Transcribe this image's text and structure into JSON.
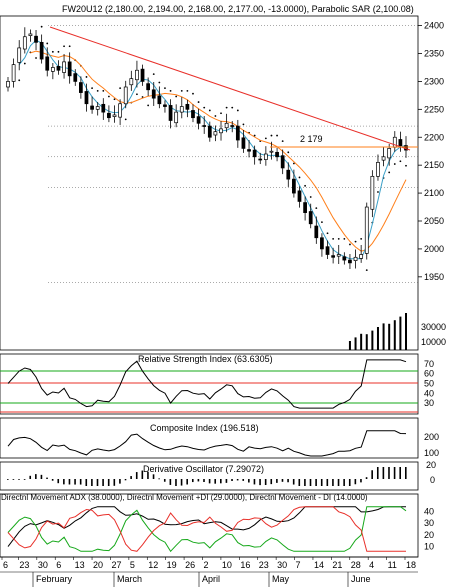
{
  "chart_data": {
    "type": "candlestick",
    "months": [
      "February",
      "March",
      "April",
      "May",
      "June"
    ],
    "date_ticks": [
      "6",
      "23",
      "30",
      "6",
      "13",
      "20",
      "27",
      "5",
      "12",
      "19",
      "26",
      "2",
      "10",
      "16",
      "23",
      "30",
      "7",
      "14",
      "21",
      "28",
      "4",
      "11",
      "18"
    ],
    "price_panel": {
      "title": "FW20U12 (2,180.00, 2,194.00, 2,168.00, 2,177.00, -13.0000), Parabolic SAR (2,100.08)",
      "y_ticks": [
        "2400",
        "2350",
        "2300",
        "2250",
        "2200",
        "2150",
        "2100",
        "2050",
        "2000",
        "1950"
      ],
      "ylim": [
        1930,
        2410
      ],
      "annotation": "2 179",
      "volume_ticks": [
        "30000",
        "10000"
      ],
      "close": [
        2300,
        2330,
        2360,
        2380,
        2385,
        2370,
        2340,
        2320,
        2325,
        2320,
        2335,
        2310,
        2300,
        2280,
        2260,
        2250,
        2255,
        2245,
        2235,
        2240,
        2260,
        2290,
        2305,
        2320,
        2300,
        2285,
        2270,
        2260,
        2255,
        2230,
        2245,
        2255,
        2250,
        2235,
        2225,
        2220,
        2200,
        2210,
        2215,
        2225,
        2220,
        2195,
        2180,
        2175,
        2165,
        2160,
        2170,
        2175,
        2165,
        2145,
        2125,
        2100,
        2085,
        2065,
        2045,
        2020,
        2000,
        1990,
        1985,
        1990,
        1980,
        1975,
        1985,
        1990,
        2075,
        2130,
        2155,
        2165,
        2180,
        2200,
        2185,
        2177
      ]
    },
    "rsi_panel": {
      "title": "Relative Strength Index (63.6305)",
      "y_ticks": [
        "70",
        "60",
        "50",
        "40",
        "30"
      ],
      "ylim": [
        20,
        78
      ]
    },
    "composite_panel": {
      "title": "Composite Index (196.518)",
      "y_ticks": [
        "200",
        "100"
      ]
    },
    "derivative_panel": {
      "title": "Derivative Oscillator (7.29072)",
      "y_ticks": [
        "20",
        "0"
      ]
    },
    "dmi_panel": {
      "title": "Directnl Movement ADX (38.0000), Directnl Movement +DI (29.0000), Directnl Movement - DI (14.0000)",
      "y_ticks": [
        "40",
        "30",
        "20",
        "10"
      ],
      "ylim": [
        2,
        48
      ]
    },
    "colors": {
      "price": "#000000",
      "sar": "#000000",
      "trendline": "#e8302a",
      "ma_long": "#ff7f1a",
      "ma_short": "#3aa0c8",
      "plus_di": "#16a81a",
      "minus_di": "#e8302a",
      "adx": "#000000"
    }
  }
}
